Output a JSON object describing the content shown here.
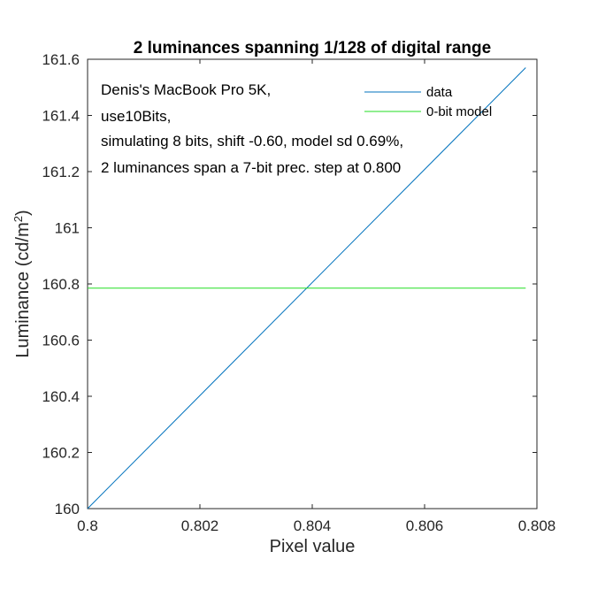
{
  "chart_data": {
    "type": "line",
    "title": "2 luminances spanning 1/128 of digital range",
    "xlabel": "Pixel value",
    "ylabel_main": "Luminance (cd/m",
    "ylabel_sup": "2",
    "ylabel_close": ")",
    "xlim": [
      0.8,
      0.808
    ],
    "ylim": [
      160,
      161.6
    ],
    "xticks": [
      0.8,
      0.802,
      0.804,
      0.806,
      0.808
    ],
    "xtick_labels": [
      "0.8",
      "0.802",
      "0.804",
      "0.806",
      "0.808"
    ],
    "yticks": [
      160,
      160.2,
      160.4,
      160.6,
      160.8,
      161,
      161.2,
      161.4,
      161.6
    ],
    "ytick_labels": [
      "160",
      "160.2",
      "160.4",
      "160.6",
      "160.8",
      "161",
      "161.2",
      "161.4",
      "161.6"
    ],
    "grid": false,
    "legend_position": "top-right",
    "series": [
      {
        "name": "data",
        "color": "#0072BD",
        "x": [
          0.8,
          0.8078
        ],
        "y": [
          160.0,
          161.57
        ]
      },
      {
        "name": "0-bit model",
        "color": "#22DD22",
        "x": [
          0.8,
          0.8078
        ],
        "y": [
          160.785,
          160.785
        ]
      }
    ],
    "annotations": [
      "Denis's MacBook Pro 5K,",
      "use10Bits,",
      "simulating 8 bits, shift -0.60, model sd 0.69%,",
      "2 luminances span a 7-bit prec. step at 0.800"
    ]
  }
}
